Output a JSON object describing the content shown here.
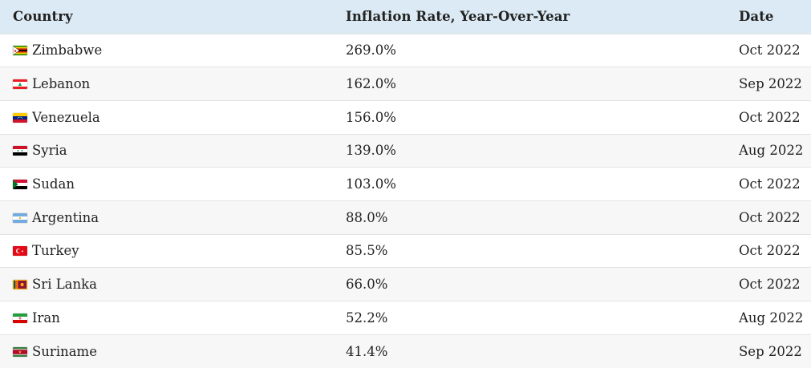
{
  "table": {
    "headers": {
      "country": "Country",
      "rate": "Inflation Rate, Year-Over-Year",
      "date": "Date"
    },
    "rows": [
      {
        "country": "Zimbabwe",
        "flag": "zimbabwe-flag-icon",
        "rate": "269.0%",
        "date": "Oct 2022"
      },
      {
        "country": "Lebanon",
        "flag": "lebanon-flag-icon",
        "rate": "162.0%",
        "date": "Sep 2022"
      },
      {
        "country": "Venezuela",
        "flag": "venezuela-flag-icon",
        "rate": "156.0%",
        "date": "Oct 2022"
      },
      {
        "country": "Syria",
        "flag": "syria-flag-icon",
        "rate": "139.0%",
        "date": "Aug 2022"
      },
      {
        "country": "Sudan",
        "flag": "sudan-flag-icon",
        "rate": "103.0%",
        "date": "Oct 2022"
      },
      {
        "country": "Argentina",
        "flag": "argentina-flag-icon",
        "rate": "88.0%",
        "date": "Oct 2022"
      },
      {
        "country": "Turkey",
        "flag": "turkey-flag-icon",
        "rate": "85.5%",
        "date": "Oct 2022"
      },
      {
        "country": "Sri Lanka",
        "flag": "sri-lanka-flag-icon",
        "rate": "66.0%",
        "date": "Oct 2022"
      },
      {
        "country": "Iran",
        "flag": "iran-flag-icon",
        "rate": "52.2%",
        "date": "Aug 2022"
      },
      {
        "country": "Suriname",
        "flag": "suriname-flag-icon",
        "rate": "41.4%",
        "date": "Sep 2022"
      }
    ]
  },
  "colors": {
    "header_background": "#dbeaf4",
    "stripe_background": "#f7f7f7",
    "row_divider": "#e3e3e3",
    "text": "#222222"
  }
}
